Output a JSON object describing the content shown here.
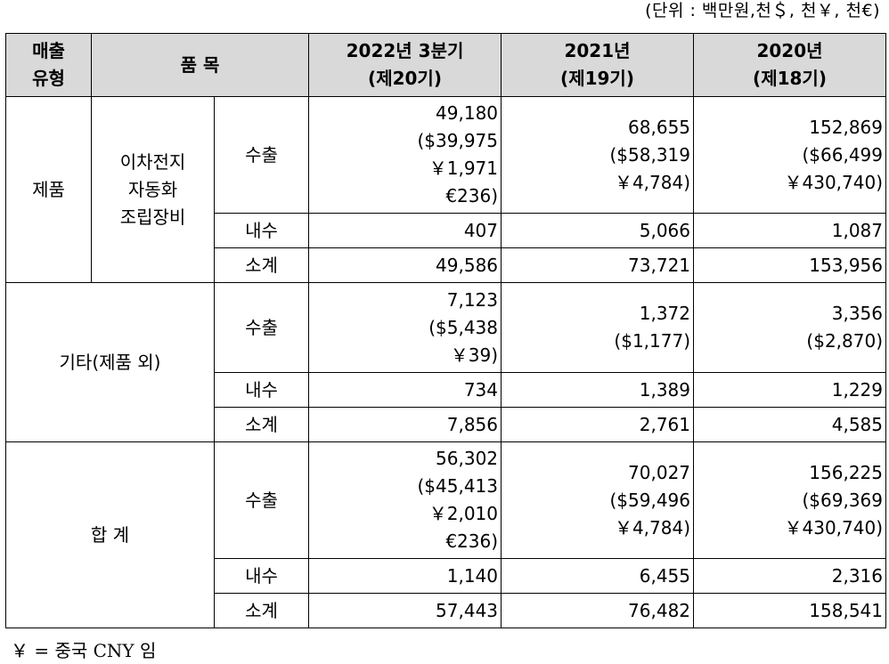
{
  "unit_note": "(단위 : 백만원,천＄, 천￥, 천€)",
  "header": {
    "type": [
      "매출",
      "유형"
    ],
    "item": "품 목",
    "col_2022": [
      "2022년 3분기",
      "(제20기)"
    ],
    "col_2021": [
      "2021년",
      "(제19기)"
    ],
    "col_2020": [
      "2020년",
      "(제18기)"
    ]
  },
  "groups": {
    "product": {
      "type": "제품",
      "item": [
        "이차전지",
        "자동화",
        "조립장비"
      ],
      "export": {
        "label": "수출",
        "y2022": [
          "49,180",
          "($39,975",
          "￥1,971",
          "€236)"
        ],
        "y2021": [
          "68,655",
          "($58,319",
          "￥4,784)"
        ],
        "y2020": [
          "152,869",
          "($66,499",
          "￥430,740)"
        ]
      },
      "domestic": {
        "label": "내수",
        "y2022": "407",
        "y2021": "5,066",
        "y2020": "1,087"
      },
      "subtotal": {
        "label": "소계",
        "y2022": "49,586",
        "y2021": "73,721",
        "y2020": "153,956"
      }
    },
    "other": {
      "type": "기타(제품 외)",
      "export": {
        "label": "수출",
        "y2022": [
          "7,123",
          "($5,438",
          "￥39)"
        ],
        "y2021": [
          "1,372",
          "($1,177)"
        ],
        "y2020": [
          "3,356",
          "($2,870)"
        ]
      },
      "domestic": {
        "label": "내수",
        "y2022": "734",
        "y2021": "1,389",
        "y2020": "1,229"
      },
      "subtotal": {
        "label": "소계",
        "y2022": "7,856",
        "y2021": "2,761",
        "y2020": "4,585"
      }
    },
    "total": {
      "type": "합 계",
      "export": {
        "label": "수출",
        "y2022": [
          "56,302",
          "($45,413",
          "￥2,010",
          "€236)"
        ],
        "y2021": [
          "70,027",
          "($59,496",
          "￥4,784)"
        ],
        "y2020": [
          "156,225",
          "($69,369",
          "￥430,740)"
        ]
      },
      "domestic": {
        "label": "내수",
        "y2022": "1,140",
        "y2021": "6,455",
        "y2020": "2,316"
      },
      "subtotal": {
        "label": "소계",
        "y2022": "57,443",
        "y2021": "76,482",
        "y2020": "158,541"
      }
    }
  },
  "footnote": "￥ = 중국 CNY 임"
}
